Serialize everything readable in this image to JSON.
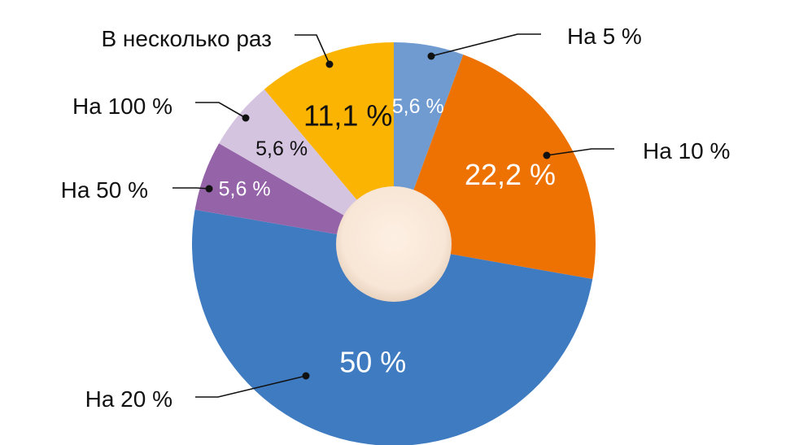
{
  "chart_data": {
    "type": "pie",
    "title": "",
    "legend": "none",
    "slices": [
      {
        "label": "На 5 %",
        "value": 5.6,
        "value_label": "5,6 %",
        "color": "#6f9bd1",
        "text_color": "#ffffff"
      },
      {
        "label": "На 10 %",
        "value": 22.2,
        "value_label": "22,2 %",
        "color": "#ee7202",
        "text_color": "#ffffff"
      },
      {
        "label": "На 20 %",
        "value": 50,
        "value_label": "50 %",
        "color": "#3f7bc1",
        "text_color": "#ffffff"
      },
      {
        "label": "На 50 %",
        "value": 5.6,
        "value_label": "5,6 %",
        "color": "#9563a8",
        "text_color": "#ffffff"
      },
      {
        "label": "На 100 %",
        "value": 5.6,
        "value_label": "5,6 %",
        "color": "#d5c4e0",
        "text_color": "#111111"
      },
      {
        "label": "В несколько раз",
        "value": 11.1,
        "value_label": "11,1 %",
        "color": "#fbb402",
        "text_color": "#111111"
      }
    ],
    "center_color": "#fcecdf"
  }
}
